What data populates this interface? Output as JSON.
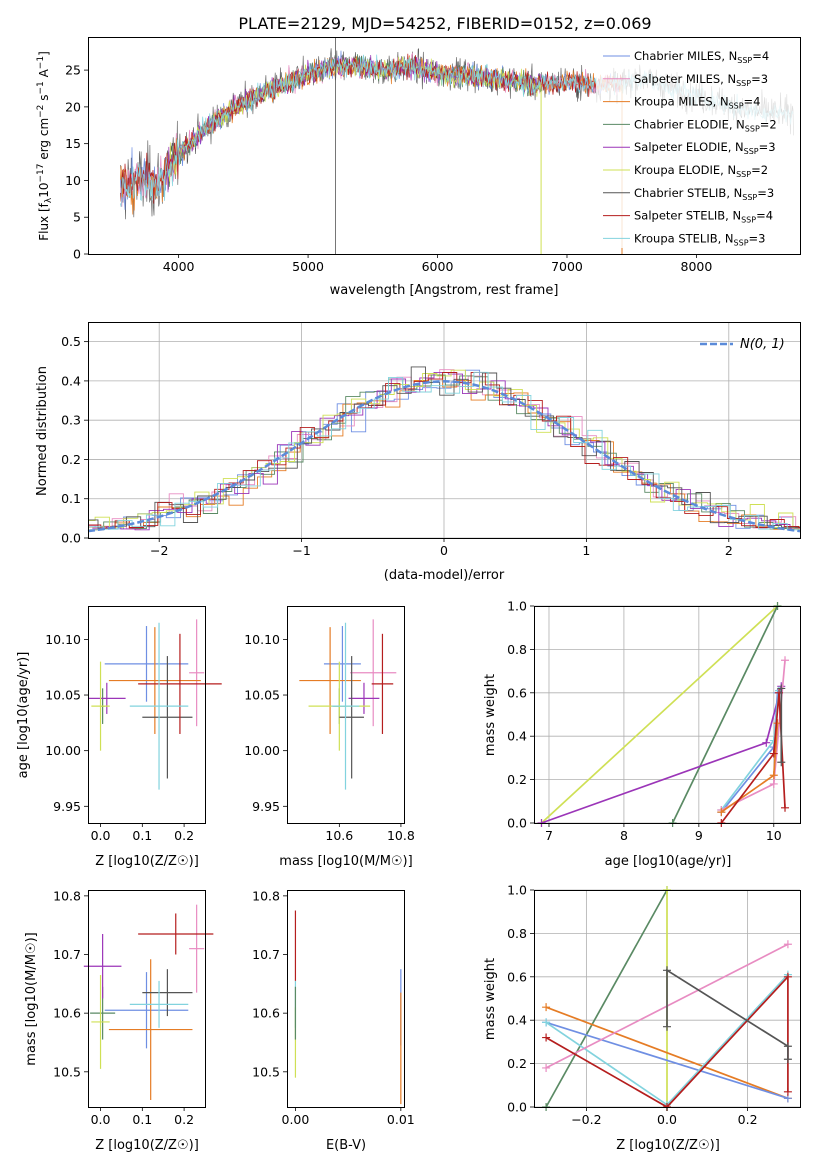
{
  "title": "PLATE=2129, MJD=54252, FIBERID=0152, z=0.069",
  "colors": {
    "Chabrier MILES": "#6f8fe3",
    "Salpeter MILES": "#e88cc2",
    "Kroupa MILES": "#e57c25",
    "Chabrier ELODIE": "#5a8a64",
    "Salpeter ELODIE": "#9b35b8",
    "Kroupa ELODIE": "#cfe055",
    "Chabrier STELIB": "#555555",
    "Salpeter STELIB": "#b51e1e",
    "Kroupa STELIB": "#82d3de",
    "gauss": "#5b8bd9"
  },
  "chart_data": [
    {
      "id": "spectrum",
      "type": "line",
      "xlabel": "wavelength [Angstrom, rest frame]",
      "ylabel": "Flux [f$_\\lambda$10$^{-17}$ erg cm$^{-2}$ s$^{-1}$ A$^{-1}$]",
      "ylabel_parts": {
        "a": "Flux [f",
        "b": "λ",
        "c": "10",
        "d": "−17",
        "e": " erg cm",
        "f": "−2",
        "g": " s",
        "h": "−1",
        "i": " A",
        "j": "−1",
        "k": "]"
      },
      "xlim": [
        3300,
        8800
      ],
      "ylim": [
        0,
        29.5
      ],
      "xticks": [
        4000,
        5000,
        6000,
        7000,
        8000
      ],
      "yticks": [
        0,
        5,
        10,
        15,
        20,
        25
      ],
      "grid": false,
      "legend_position": "top-right",
      "legend": [
        {
          "model": "Chabrier MILES",
          "nssp": "4"
        },
        {
          "model": "Salpeter MILES",
          "nssp": "3"
        },
        {
          "model": "Kroupa MILES",
          "nssp": "4"
        },
        {
          "model": "Chabrier ELODIE",
          "nssp": "2"
        },
        {
          "model": "Salpeter ELODIE",
          "nssp": "3"
        },
        {
          "model": "Kroupa ELODIE",
          "nssp": "2"
        },
        {
          "model": "Chabrier STELIB",
          "nssp": "3"
        },
        {
          "model": "Salpeter STELIB",
          "nssp": "4"
        },
        {
          "model": "Kroupa STELIB",
          "nssp": "3"
        }
      ],
      "legend_label_sub": "SSP",
      "continuum": {
        "x": [
          3550,
          3700,
          3850,
          3950,
          4050,
          4200,
          4400,
          4600,
          4800,
          5000,
          5200,
          5400,
          5600,
          5800,
          6000,
          6200,
          6400,
          6600,
          6800,
          7000,
          7200,
          7400,
          7600,
          7800,
          8000,
          8200,
          8400,
          8750
        ],
        "y": [
          9,
          10,
          9.5,
          12.5,
          14.5,
          17,
          19.5,
          21.5,
          23,
          24.5,
          25.5,
          25.5,
          25,
          25.5,
          24.5,
          24.5,
          24,
          23.5,
          23,
          23.5,
          23,
          23,
          24,
          22.5,
          21.5,
          20.5,
          19.5,
          19
        ]
      }
    },
    {
      "id": "residuals",
      "type": "histogram",
      "xlabel": "(data-model)/error",
      "ylabel": "Normed distribution",
      "xlim": [
        -2.5,
        2.5
      ],
      "ylim": [
        0,
        0.55
      ],
      "xticks": [
        -2,
        -1,
        0,
        1,
        2
      ],
      "yticks": [
        0,
        0.1,
        0.2,
        0.3,
        0.4,
        0.5
      ],
      "grid": true,
      "legend_position": "top-right",
      "legend_label": "N(0, 1)",
      "bin_width": 0.1
    },
    {
      "id": "age_vs_Z",
      "type": "scatter",
      "xlabel": "Z [log10(Z/Z☉)]",
      "ylabel": "age [log10(age/yr)]",
      "xlim": [
        -0.03,
        0.25
      ],
      "ylim": [
        9.935,
        10.13
      ],
      "xticks": [
        0,
        0.1,
        0.2
      ],
      "yticks": [
        9.95,
        10.0,
        10.05,
        10.1
      ],
      "grid": false,
      "points": [
        {
          "model": "Chabrier MILES",
          "x": 0.11,
          "xerr": 0.1,
          "y": 10.078,
          "yerr": 0.034
        },
        {
          "model": "Salpeter MILES",
          "x": 0.23,
          "xerr": 0.018,
          "y": 10.07,
          "yerr": 0.048
        },
        {
          "model": "Kroupa MILES",
          "x": 0.13,
          "xerr": 0.11,
          "y": 10.063,
          "yerr": 0.048
        },
        {
          "model": "Chabrier ELODIE",
          "x": 0.005,
          "xerr": 0.005,
          "y": 10.04,
          "yerr": 0.016
        },
        {
          "model": "Salpeter ELODIE",
          "x": 0.015,
          "xerr": 0.045,
          "y": 10.047,
          "yerr": 0.014
        },
        {
          "model": "Kroupa ELODIE",
          "x": 0.0,
          "xerr": 0.022,
          "y": 10.04,
          "yerr": 0.04
        },
        {
          "model": "Chabrier STELIB",
          "x": 0.16,
          "xerr": 0.06,
          "y": 10.03,
          "yerr": 0.055
        },
        {
          "model": "Salpeter STELIB",
          "x": 0.19,
          "xerr": 0.1,
          "y": 10.06,
          "yerr": 0.045
        },
        {
          "model": "Kroupa STELIB",
          "x": 0.14,
          "xerr": 0.07,
          "y": 10.04,
          "yerr": 0.075
        }
      ]
    },
    {
      "id": "age_vs_mass",
      "type": "scatter",
      "xlabel": "mass [log10(M/M☉)]",
      "ylabel": "",
      "xlim": [
        10.43,
        10.81
      ],
      "ylim": [
        9.935,
        10.13
      ],
      "xticks": [
        10.6,
        10.8
      ],
      "yticks": [
        9.95,
        10.0,
        10.05,
        10.1
      ],
      "grid": false,
      "points": [
        {
          "model": "Chabrier MILES",
          "x": 10.61,
          "xerr": 0.06,
          "y": 10.078,
          "yerr": 0.034
        },
        {
          "model": "Salpeter MILES",
          "x": 10.71,
          "xerr": 0.075,
          "y": 10.07,
          "yerr": 0.048
        },
        {
          "model": "Kroupa MILES",
          "x": 10.57,
          "xerr": 0.1,
          "y": 10.063,
          "yerr": 0.048
        },
        {
          "model": "Chabrier ELODIE",
          "x": 10.6,
          "xerr": 0.02,
          "y": 10.04,
          "yerr": 0.016
        },
        {
          "model": "Salpeter ELODIE",
          "x": 10.68,
          "xerr": 0.05,
          "y": 10.047,
          "yerr": 0.014
        },
        {
          "model": "Kroupa ELODIE",
          "x": 10.6,
          "xerr": 0.1,
          "y": 10.04,
          "yerr": 0.04
        },
        {
          "model": "Chabrier STELIB",
          "x": 10.64,
          "xerr": 0.04,
          "y": 10.03,
          "yerr": 0.055
        },
        {
          "model": "Salpeter STELIB",
          "x": 10.74,
          "xerr": 0.035,
          "y": 10.06,
          "yerr": 0.045
        },
        {
          "model": "Kroupa STELIB",
          "x": 10.62,
          "xerr": 0.045,
          "y": 10.04,
          "yerr": 0.075
        }
      ]
    },
    {
      "id": "weight_vs_age",
      "type": "line",
      "xlabel": "age [log10(age/yr)]",
      "ylabel": "mass weight",
      "xlim": [
        6.8,
        10.35
      ],
      "ylim": [
        0,
        1.0
      ],
      "xticks": [
        7,
        8,
        9,
        10
      ],
      "yticks": [
        0,
        0.2,
        0.4,
        0.6,
        0.8,
        1.0
      ],
      "grid": true,
      "series": [
        {
          "model": "Kroupa ELODIE",
          "x": [
            6.9,
            10.05
          ],
          "y": [
            0.0,
            1.0
          ]
        },
        {
          "model": "Chabrier ELODIE",
          "x": [
            8.65,
            10.05
          ],
          "y": [
            0.0,
            1.0
          ]
        },
        {
          "model": "Salpeter ELODIE",
          "x": [
            6.9,
            9.9,
            10.1
          ],
          "y": [
            0.0,
            0.37,
            0.63
          ]
        },
        {
          "model": "Chabrier MILES",
          "x": [
            9.3,
            10.0,
            10.05
          ],
          "y": [
            0.05,
            0.35,
            0.6
          ]
        },
        {
          "model": "Kroupa STELIB",
          "x": [
            9.3,
            10.0,
            10.07
          ],
          "y": [
            0.06,
            0.38,
            0.61
          ]
        },
        {
          "model": "Salpeter MILES",
          "x": [
            9.3,
            10.0,
            10.15
          ],
          "y": [
            0.06,
            0.18,
            0.75
          ]
        },
        {
          "model": "Kroupa MILES",
          "x": [
            9.3,
            10.0,
            10.05
          ],
          "y": [
            0.05,
            0.22,
            0.46
          ]
        },
        {
          "model": "Salpeter STELIB",
          "x": [
            9.3,
            10.0,
            10.07,
            10.15
          ],
          "y": [
            0.0,
            0.32,
            0.6,
            0.07
          ]
        },
        {
          "model": "Chabrier STELIB",
          "x": [
            10.1,
            10.1
          ],
          "y": [
            0.28,
            0.62
          ]
        }
      ]
    },
    {
      "id": "mass_vs_Z",
      "type": "scatter",
      "xlabel": "Z [log10(Z/Z☉)]",
      "ylabel": "mass [log10(M/M☉)]",
      "xlim": [
        -0.03,
        0.25
      ],
      "ylim": [
        10.44,
        10.81
      ],
      "xticks": [
        0,
        0.1,
        0.2
      ],
      "yticks": [
        10.5,
        10.6,
        10.7,
        10.8
      ],
      "grid": false,
      "points": [
        {
          "model": "Chabrier MILES",
          "x": 0.11,
          "xerr": 0.1,
          "y": 10.605,
          "yerr": 0.065
        },
        {
          "model": "Salpeter MILES",
          "x": 0.23,
          "xerr": 0.018,
          "y": 10.71,
          "yerr": 0.075
        },
        {
          "model": "Kroupa MILES",
          "x": 0.12,
          "xerr": 0.1,
          "y": 10.572,
          "yerr": 0.12
        },
        {
          "model": "Chabrier ELODIE",
          "x": 0.005,
          "xerr": 0.03,
          "y": 10.6,
          "yerr": 0.045
        },
        {
          "model": "Salpeter ELODIE",
          "x": 0.005,
          "xerr": 0.045,
          "y": 10.68,
          "yerr": 0.055
        },
        {
          "model": "Kroupa ELODIE",
          "x": 0.0,
          "xerr": 0.022,
          "y": 10.585,
          "yerr": 0.08
        },
        {
          "model": "Chabrier STELIB",
          "x": 0.16,
          "xerr": 0.06,
          "y": 10.635,
          "yerr": 0.04
        },
        {
          "model": "Salpeter STELIB",
          "x": 0.18,
          "xerr": 0.09,
          "y": 10.735,
          "yerr": 0.035
        },
        {
          "model": "Kroupa STELIB",
          "x": 0.14,
          "xerr": 0.07,
          "y": 10.615,
          "yerr": 0.04
        }
      ]
    },
    {
      "id": "mass_vs_ebv",
      "type": "scatter",
      "xlabel": "E(B-V)",
      "ylabel": "",
      "xlim": [
        -0.0008,
        0.0103
      ],
      "ylim": [
        10.44,
        10.81
      ],
      "xticks": [
        0.0,
        0.01
      ],
      "yticks": [
        10.5,
        10.6,
        10.7,
        10.8
      ],
      "grid": false,
      "points": [
        {
          "model": "Chabrier MILES",
          "x": 0.01,
          "y": 10.61,
          "yerr": 0.065
        },
        {
          "model": "Kroupa MILES",
          "x": 0.01,
          "y": 10.54,
          "yerr": 0.095
        },
        {
          "model": "Salpeter STELIB",
          "x": 0.0,
          "y": 10.715,
          "yerr": 0.06
        },
        {
          "model": "Kroupa STELIB",
          "x": 0.0,
          "y": 10.615,
          "yerr": 0.04
        },
        {
          "model": "Kroupa ELODIE",
          "x": 0.0,
          "y": 10.55,
          "yerr": 0.06
        },
        {
          "model": "Chabrier ELODIE",
          "x": 0.0,
          "y": 10.6,
          "yerr": 0.045
        }
      ]
    },
    {
      "id": "weight_vs_Z",
      "type": "line",
      "xlabel": "Z [log10(Z/Z☉)]",
      "ylabel": "mass weight",
      "xlim": [
        -0.33,
        0.33
      ],
      "ylim": [
        0,
        1.0
      ],
      "xticks": [
        -0.2,
        0.0,
        0.2
      ],
      "yticks": [
        0,
        0.2,
        0.4,
        0.6,
        0.8,
        1.0
      ],
      "grid": true,
      "series": [
        {
          "model": "Chabrier ELODIE",
          "x": [
            -0.3,
            0.0
          ],
          "y": [
            0.0,
            1.0
          ]
        },
        {
          "model": "Kroupa ELODIE",
          "x": [
            0.0,
            0.0
          ],
          "y": [
            0.0,
            1.0
          ]
        },
        {
          "model": "Kroupa MILES",
          "x": [
            -0.3,
            0.3
          ],
          "y": [
            0.46,
            0.04
          ]
        },
        {
          "model": "Chabrier MILES",
          "x": [
            -0.3,
            0.3
          ],
          "y": [
            0.39,
            0.04
          ]
        },
        {
          "model": "Kroupa STELIB",
          "x": [
            -0.3,
            0.0,
            0.3
          ],
          "y": [
            0.39,
            0.01,
            0.61
          ]
        },
        {
          "model": "Salpeter MILES",
          "x": [
            -0.3,
            0.3
          ],
          "y": [
            0.18,
            0.75
          ]
        },
        {
          "model": "Salpeter STELIB",
          "x": [
            -0.3,
            0.0,
            0.3,
            0.3
          ],
          "y": [
            0.32,
            0.0,
            0.6,
            0.07
          ]
        },
        {
          "model": "Chabrier STELIB",
          "x": [
            0.0,
            0.0,
            0.3,
            0.3
          ],
          "y": [
            0.37,
            0.63,
            0.28,
            0.22
          ]
        }
      ]
    }
  ]
}
